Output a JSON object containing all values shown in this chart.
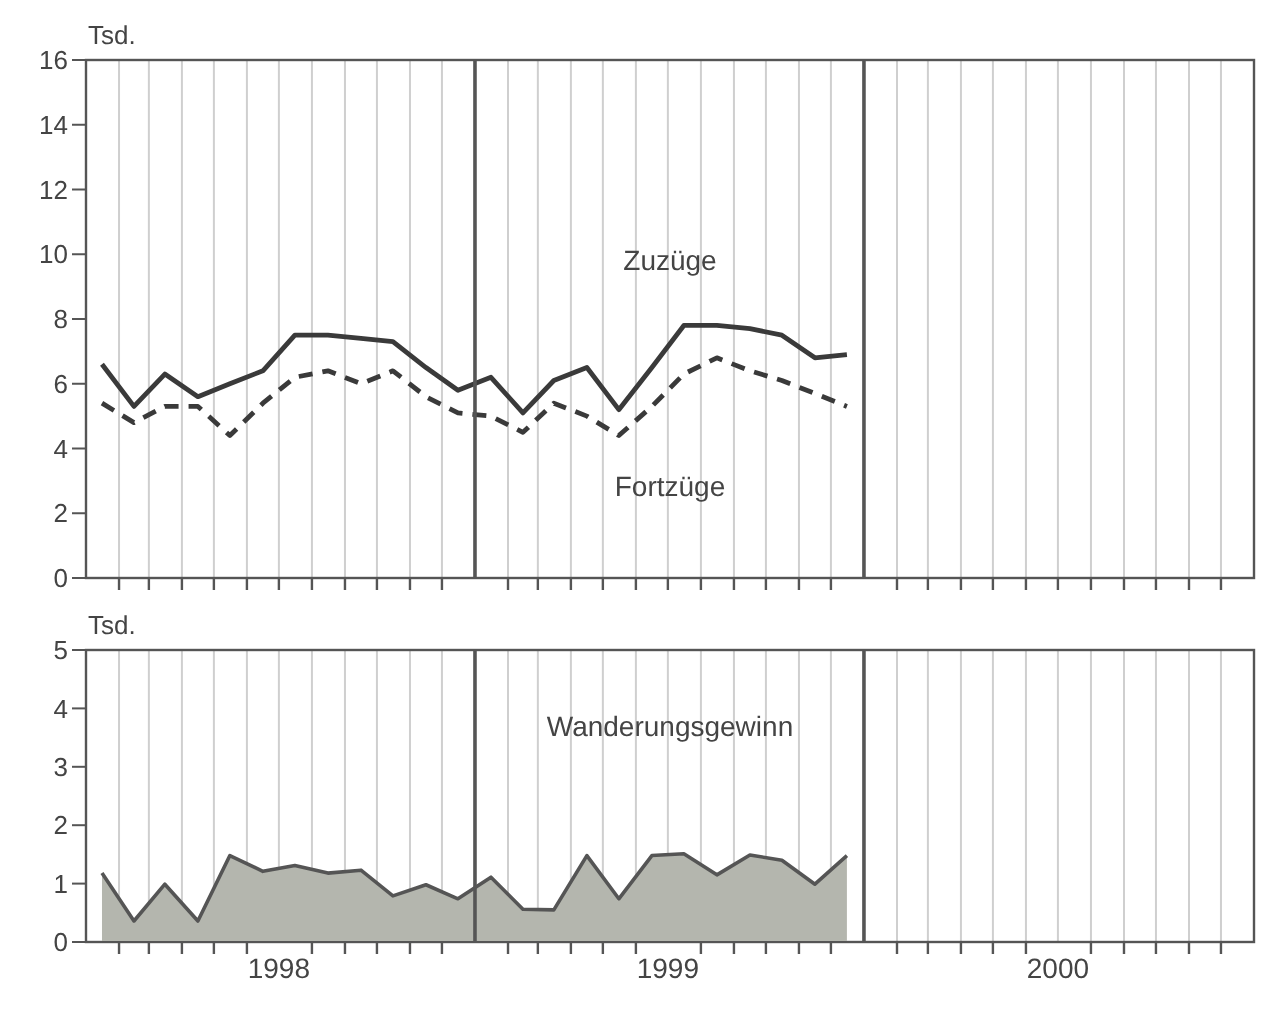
{
  "chart_data": [
    {
      "type": "line",
      "ylabel": "Tsd.",
      "x": [
        "1998-01-16",
        "1998-02-15",
        "1998-03-16",
        "1998-04-16",
        "1998-05-16",
        "1998-06-16",
        "1998-07-16",
        "1998-08-16",
        "1998-09-16",
        "1998-10-16",
        "1998-11-16",
        "1998-12-16",
        "1999-01-16",
        "1999-02-15",
        "1999-03-16",
        "1999-04-16",
        "1999-05-16",
        "1999-06-16",
        "1999-07-16",
        "1999-08-16",
        "1999-09-16",
        "1999-10-16",
        "1999-11-16",
        "1999-12-16"
      ],
      "series": [
        {
          "name": "Zuzüge",
          "color": "#3a3a3a",
          "line_style": "solid",
          "values": [
            6.6,
            5.3,
            6.3,
            5.6,
            6.0,
            6.4,
            7.5,
            7.5,
            7.4,
            7.3,
            6.5,
            5.8,
            6.2,
            5.1,
            6.1,
            6.5,
            5.2,
            6.5,
            7.8,
            7.8,
            7.7,
            7.5,
            6.8,
            6.9
          ]
        },
        {
          "name": "Fortzüge",
          "color": "#3a3a3a",
          "line_style": "dashed",
          "values": [
            5.4,
            4.8,
            5.3,
            5.3,
            4.4,
            5.4,
            6.2,
            6.4,
            6.0,
            6.4,
            5.6,
            5.1,
            5.0,
            4.5,
            5.4,
            5.0,
            4.4,
            5.3,
            6.3,
            6.8,
            6.4,
            6.1,
            5.7,
            5.3
          ]
        }
      ],
      "xlim": [
        "1998-01-01",
        "2001-01-01"
      ],
      "xticks": [
        {
          "value": "1998-02-01",
          "label": null
        },
        {
          "value": "1998-03-01",
          "label": null
        },
        {
          "value": "1998-04-01",
          "label": null
        },
        {
          "value": "1998-05-01",
          "label": null
        },
        {
          "value": "1998-06-01",
          "label": null
        },
        {
          "value": "1998-07-01",
          "label": null
        },
        {
          "value": "1998-08-01",
          "label": null
        },
        {
          "value": "1998-09-01",
          "label": null
        },
        {
          "value": "1998-10-01",
          "label": null
        },
        {
          "value": "1998-11-01",
          "label": null
        },
        {
          "value": "1998-12-01",
          "label": null
        },
        {
          "value": "1999-02-01",
          "label": null
        },
        {
          "value": "1999-03-01",
          "label": null
        },
        {
          "value": "1999-04-01",
          "label": null
        },
        {
          "value": "1999-05-01",
          "label": null
        },
        {
          "value": "1999-06-01",
          "label": null
        },
        {
          "value": "1999-07-01",
          "label": null
        },
        {
          "value": "1999-08-01",
          "label": null
        },
        {
          "value": "1999-09-01",
          "label": null
        },
        {
          "value": "1999-10-01",
          "label": null
        },
        {
          "value": "1999-11-01",
          "label": null
        },
        {
          "value": "1999-12-01",
          "label": null
        },
        {
          "value": "2000-02-01",
          "label": null
        },
        {
          "value": "2000-03-01",
          "label": null
        },
        {
          "value": "2000-04-01",
          "label": null
        },
        {
          "value": "2000-05-01",
          "label": null
        },
        {
          "value": "2000-06-01",
          "label": null
        },
        {
          "value": "2000-07-01",
          "label": null
        },
        {
          "value": "2000-08-01",
          "label": null
        },
        {
          "value": "2000-09-01",
          "label": null
        },
        {
          "value": "2000-10-01",
          "label": null
        },
        {
          "value": "2000-11-01",
          "label": null
        },
        {
          "value": "2000-12-01",
          "label": null
        }
      ],
      "ylim": [
        0,
        16
      ],
      "yticks": [
        0,
        2,
        4,
        6,
        8,
        10,
        12,
        14,
        16
      ],
      "grid": "x",
      "tick_labels": "y",
      "marker": "none",
      "legend": false,
      "ref_lines": [
        {
          "axis": "x",
          "value": "1999-01-01",
          "color": "#555555"
        },
        {
          "axis": "x",
          "value": "2000-01-01",
          "color": "#555555"
        }
      ]
    },
    {
      "type": "area",
      "ylabel": "Tsd.",
      "x": [
        "1998-01-16",
        "1998-02-15",
        "1998-03-16",
        "1998-04-16",
        "1998-05-16",
        "1998-06-16",
        "1998-07-16",
        "1998-08-16",
        "1998-09-16",
        "1998-10-16",
        "1998-11-16",
        "1998-12-16",
        "1999-01-16",
        "1999-02-15",
        "1999-03-16",
        "1999-04-16",
        "1999-05-16",
        "1999-06-16",
        "1999-07-16",
        "1999-08-16",
        "1999-09-16",
        "1999-10-16",
        "1999-11-16",
        "1999-12-16"
      ],
      "series": [
        {
          "name": "Wanderungsgewinn",
          "color": "#b4b6ae",
          "values": [
            1.18,
            0.36,
            0.99,
            0.36,
            1.48,
            1.21,
            1.31,
            1.18,
            1.23,
            0.79,
            0.98,
            0.74,
            1.11,
            0.56,
            0.55,
            1.48,
            0.74,
            1.48,
            1.51,
            1.15,
            1.49,
            1.4,
            0.99,
            1.48
          ]
        }
      ],
      "xlim": [
        "1998-01-01",
        "2001-01-01"
      ],
      "xticks": [
        {
          "value": "1998-02-01",
          "label": null
        },
        {
          "value": "1998-03-01",
          "label": null
        },
        {
          "value": "1998-04-01",
          "label": null
        },
        {
          "value": "1998-05-01",
          "label": null
        },
        {
          "value": "1998-06-01",
          "label": null
        },
        {
          "value": "1998-07-01",
          "label": "1998"
        },
        {
          "value": "1998-08-01",
          "label": null
        },
        {
          "value": "1998-09-01",
          "label": null
        },
        {
          "value": "1998-10-01",
          "label": null
        },
        {
          "value": "1998-11-01",
          "label": null
        },
        {
          "value": "1998-12-01",
          "label": null
        },
        {
          "value": "1999-02-01",
          "label": null
        },
        {
          "value": "1999-03-01",
          "label": null
        },
        {
          "value": "1999-04-01",
          "label": null
        },
        {
          "value": "1999-05-01",
          "label": null
        },
        {
          "value": "1999-06-01",
          "label": null
        },
        {
          "value": "1999-07-01",
          "label": "1999"
        },
        {
          "value": "1999-08-01",
          "label": null
        },
        {
          "value": "1999-09-01",
          "label": null
        },
        {
          "value": "1999-10-01",
          "label": null
        },
        {
          "value": "1999-11-01",
          "label": null
        },
        {
          "value": "1999-12-01",
          "label": null
        },
        {
          "value": "2000-02-01",
          "label": null
        },
        {
          "value": "2000-03-01",
          "label": null
        },
        {
          "value": "2000-04-01",
          "label": null
        },
        {
          "value": "2000-05-01",
          "label": null
        },
        {
          "value": "2000-06-01",
          "label": null
        },
        {
          "value": "2000-07-01",
          "label": "2000"
        },
        {
          "value": "2000-08-01",
          "label": null
        },
        {
          "value": "2000-09-01",
          "label": null
        },
        {
          "value": "2000-10-01",
          "label": null
        },
        {
          "value": "2000-11-01",
          "label": null
        },
        {
          "value": "2000-12-01",
          "label": null
        }
      ],
      "ylim": [
        0,
        5
      ],
      "yticks": [
        0,
        1,
        2,
        3,
        4,
        5
      ],
      "grid": "x",
      "marker": "none",
      "legend": false,
      "ref_lines": [
        {
          "axis": "x",
          "value": "1999-01-01",
          "color": "#555555"
        },
        {
          "axis": "x",
          "value": "2000-01-01",
          "color": "#555555"
        }
      ]
    }
  ]
}
